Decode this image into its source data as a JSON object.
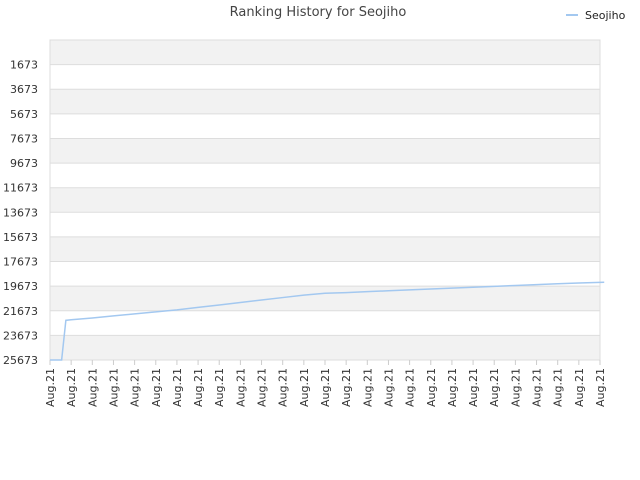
{
  "chart_data": {
    "type": "line",
    "title": "Ranking History for Seojiho",
    "xlabel": "",
    "ylabel": "",
    "y_reversed": true,
    "ylim": [
      -327,
      25673
    ],
    "y_ticks": [
      "1673",
      "3673",
      "5673",
      "7673",
      "9673",
      "11673",
      "13673",
      "15673",
      "17673",
      "19673",
      "21673",
      "23673",
      "25673"
    ],
    "x_tick_labels": [
      "Aug.21",
      "Aug.21",
      "Aug.21",
      "Aug.21",
      "Aug.21",
      "Aug.21",
      "Aug.21",
      "Aug.21",
      "Aug.21",
      "Aug.21",
      "Aug.21",
      "Aug.21",
      "Aug.21",
      "Aug.21",
      "Aug.21",
      "Aug.21",
      "Aug.21",
      "Aug.21",
      "Aug.21",
      "Aug.21",
      "Aug.21",
      "Aug.21",
      "Aug.21",
      "Aug.21",
      "Aug.21",
      "Aug.21",
      "Aug.21"
    ],
    "grid": true,
    "legend_position": "top-right",
    "colors": {
      "series": "#a3c8f0",
      "band": "#f2f2f2",
      "grid": "#dddddd"
    },
    "series": [
      {
        "name": "Seojiho",
        "points": [
          [
            0,
            25673
          ],
          [
            0.55,
            25673
          ],
          [
            0.75,
            22450
          ],
          [
            1,
            22400
          ],
          [
            2,
            22260
          ],
          [
            3,
            22090
          ],
          [
            4,
            21930
          ],
          [
            5,
            21760
          ],
          [
            6,
            21600
          ],
          [
            7,
            21400
          ],
          [
            8,
            21200
          ],
          [
            9,
            21000
          ],
          [
            10,
            20800
          ],
          [
            11,
            20600
          ],
          [
            12,
            20400
          ],
          [
            13,
            20250
          ],
          [
            14,
            20200
          ],
          [
            15,
            20120
          ],
          [
            16,
            20050
          ],
          [
            17,
            19980
          ],
          [
            18,
            19900
          ],
          [
            19,
            19830
          ],
          [
            20,
            19760
          ],
          [
            21,
            19690
          ],
          [
            22,
            19620
          ],
          [
            23,
            19550
          ],
          [
            24,
            19480
          ],
          [
            25,
            19420
          ],
          [
            26.2,
            19360
          ]
        ]
      }
    ]
  }
}
